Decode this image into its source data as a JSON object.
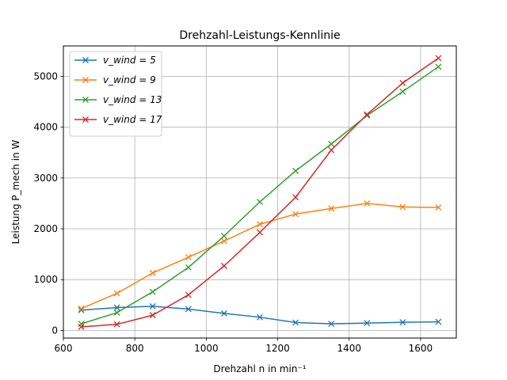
{
  "chart_data": {
    "type": "line",
    "title": "Drehzahl-Leistungs-Kennlinie",
    "xlabel": "Drehzahl n in min⁻¹",
    "ylabel": "Leistung P_mech in W",
    "xlim": [
      600,
      1700
    ],
    "ylim": [
      -150,
      5600
    ],
    "xticks": [
      600,
      800,
      1000,
      1200,
      1400,
      1600
    ],
    "yticks": [
      0,
      1000,
      2000,
      3000,
      4000,
      5000
    ],
    "grid": true,
    "legend_position": "top-left",
    "marker": "x",
    "x": [
      650,
      750,
      850,
      950,
      1050,
      1150,
      1250,
      1350,
      1450,
      1550,
      1650
    ],
    "series": [
      {
        "name": "v_wind = 5",
        "color": "#1f77b4",
        "values": [
          400,
          450,
          475,
          420,
          335,
          260,
          155,
          130,
          145,
          160,
          170
        ]
      },
      {
        "name": "v_wind = 9",
        "color": "#ff7f0e",
        "values": [
          430,
          730,
          1130,
          1440,
          1760,
          2090,
          2290,
          2400,
          2500,
          2430,
          2420
        ]
      },
      {
        "name": "v_wind = 13",
        "color": "#2ca02c",
        "values": [
          130,
          350,
          760,
          1240,
          1860,
          2530,
          3140,
          3670,
          4230,
          4700,
          5190
        ]
      },
      {
        "name": "v_wind = 17",
        "color": "#d62728",
        "values": [
          70,
          120,
          300,
          700,
          1270,
          1930,
          2620,
          3550,
          4250,
          4870,
          5360
        ]
      }
    ]
  }
}
